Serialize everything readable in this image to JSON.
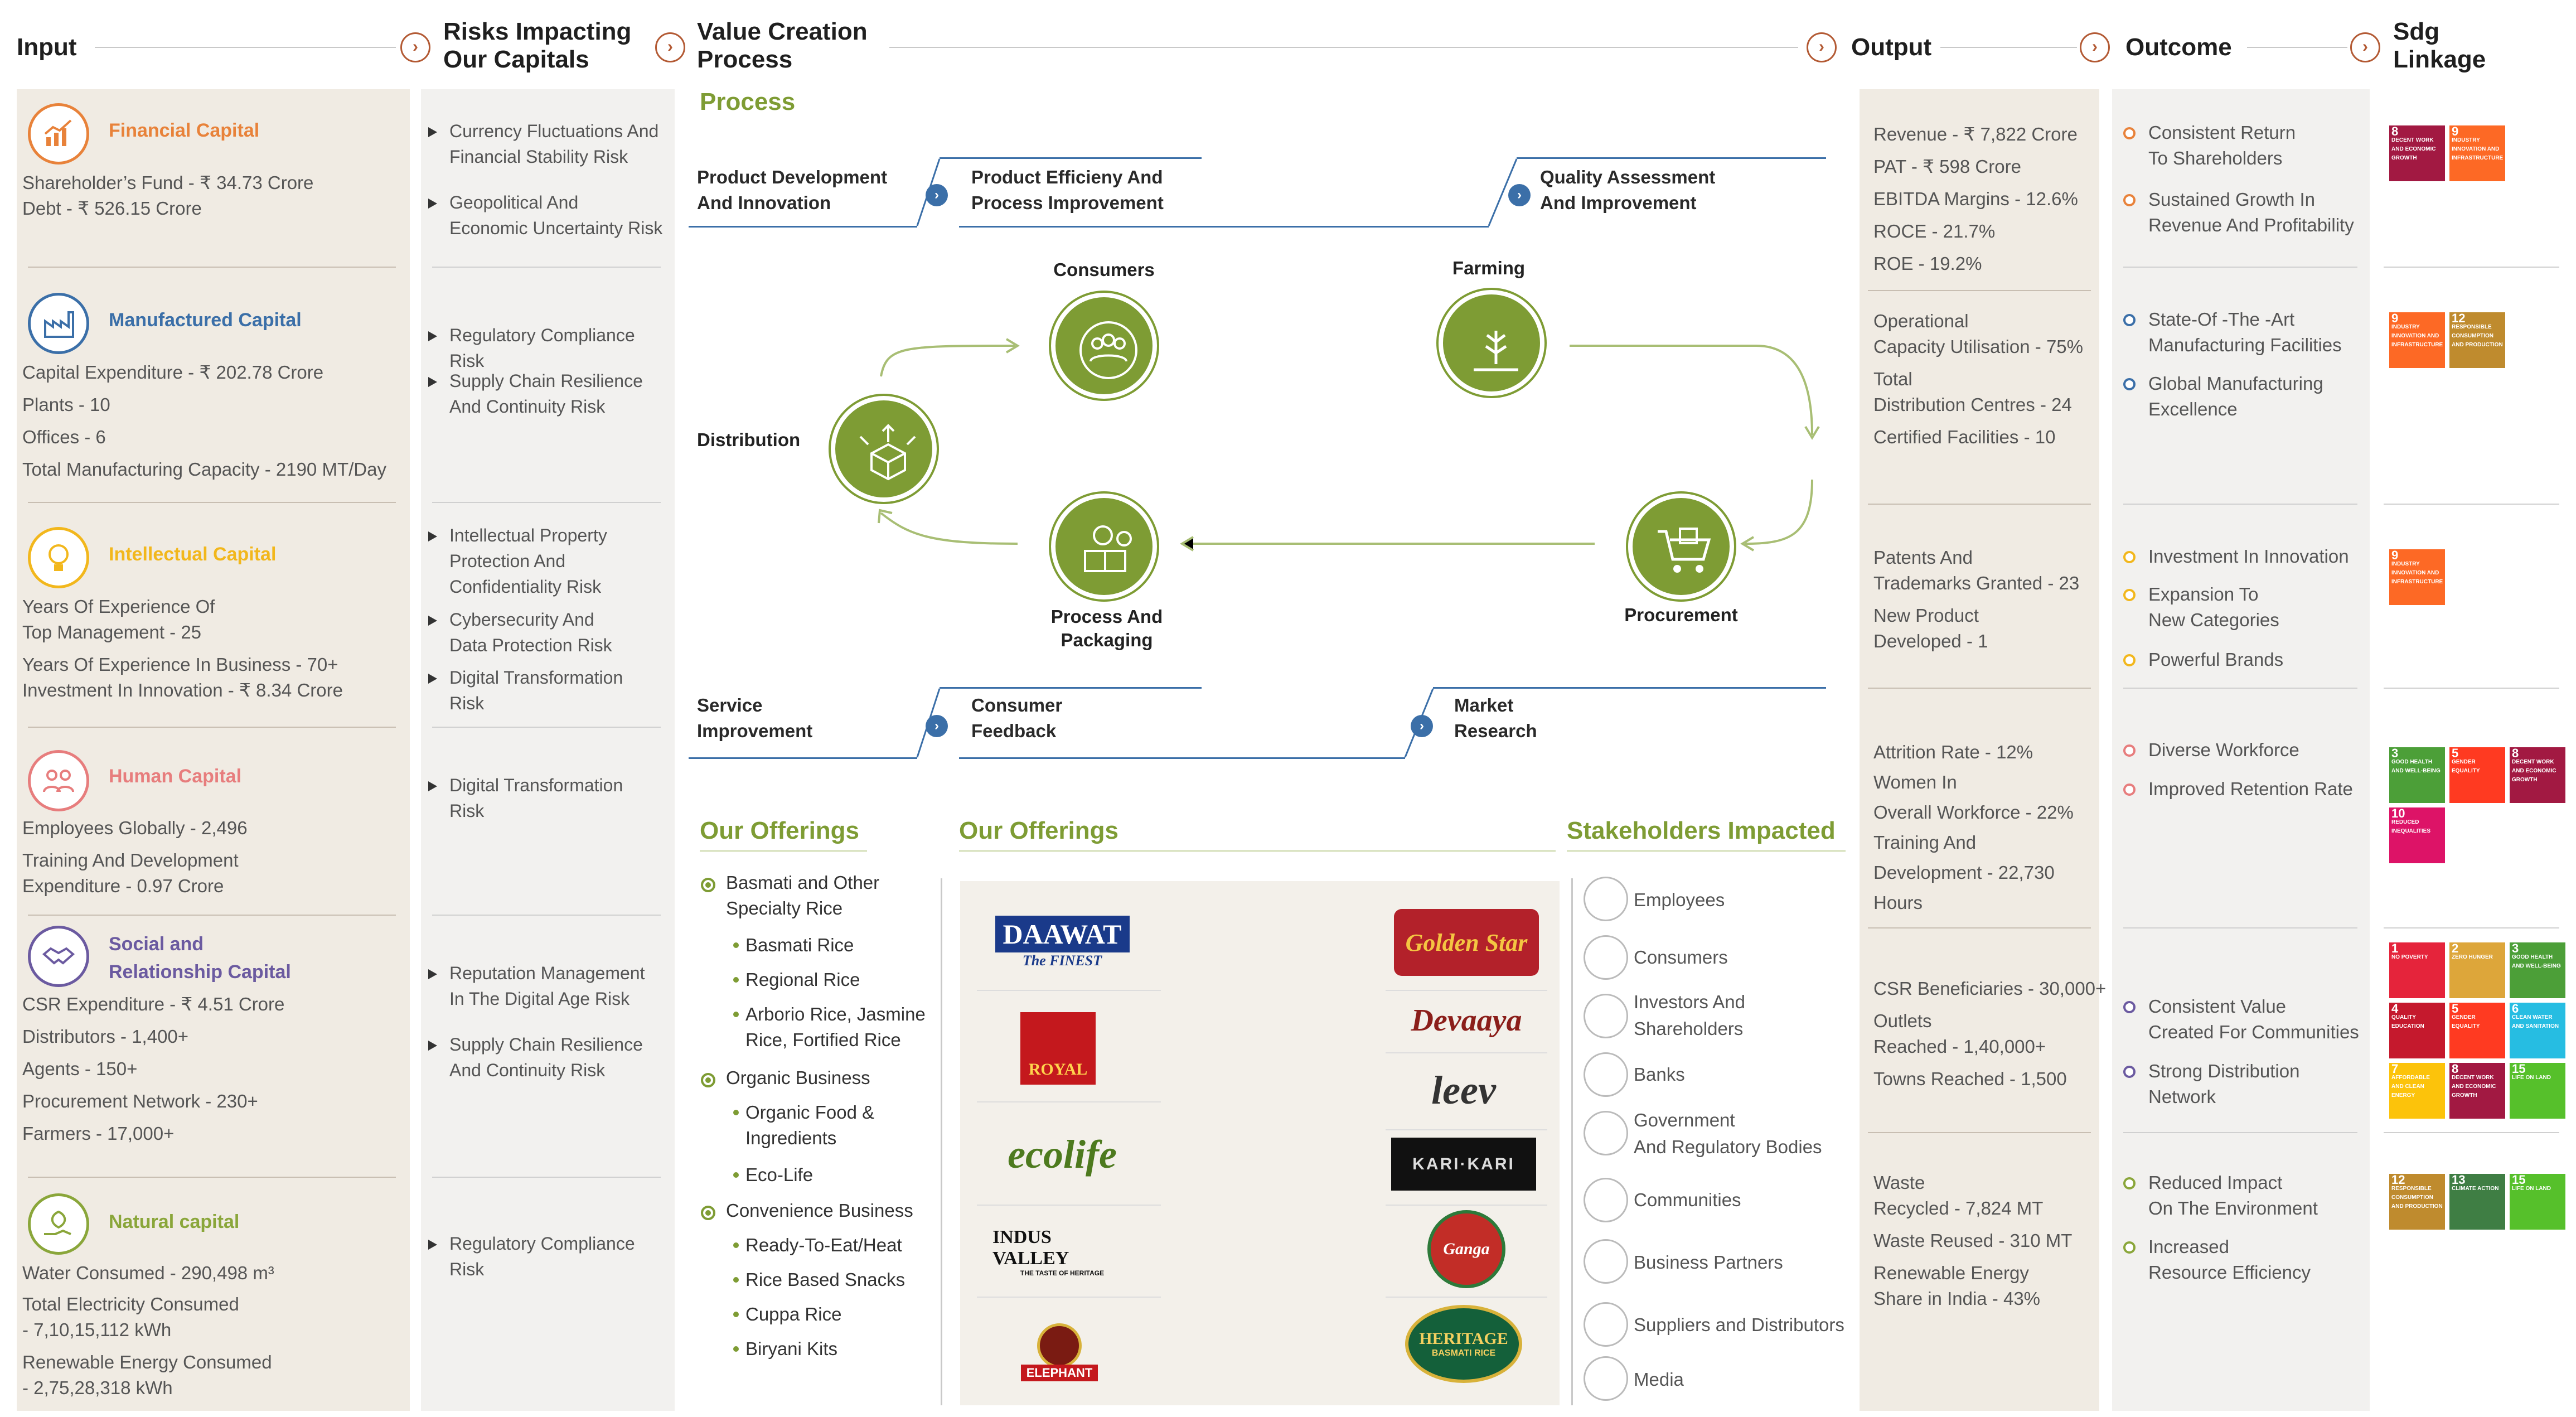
{
  "headers": {
    "input": "Input",
    "risks_l1": "Risks Impacting",
    "risks_l2": "Our Capitals",
    "value_l1": "Value Creation",
    "value_l2": "Process",
    "output": "Output",
    "outcome": "Outcome",
    "sdg_l1": "Sdg",
    "sdg_l2": "Linkage",
    "arrow": "›"
  },
  "capitals": [
    {
      "name": "Financial Capital",
      "color": "#e8823a",
      "lines": [
        "Shareholder’s Fund - ₹ 34.73 Crore",
        "Debt - ₹ 526.15 Crore"
      ]
    },
    {
      "name": "Manufactured Capital",
      "color": "#3b6fa8",
      "lines": [
        "Capital Expenditure - ₹ 202.78 Crore",
        "Plants - 10",
        "Offices - 6",
        "Total Manufacturing Capacity - 2190 MT/Day"
      ]
    },
    {
      "name": "Intellectual Capital",
      "color": "#f2b71c",
      "lines": [
        "Years Of Experience Of",
        "Top Management - 25",
        "Years Of Experience In Business - 70+",
        "Investment In Innovation - ₹ 8.34 Crore"
      ]
    },
    {
      "name": "Human Capital",
      "color": "#e77d7d",
      "lines": [
        "Employees Globally - 2,496",
        "Training And Development",
        "Expenditure - 0.97 Crore"
      ]
    },
    {
      "name_l1": "Social and",
      "name_l2": "Relationship Capital",
      "color": "#6b5aa0",
      "lines": [
        "CSR Expenditure - ₹ 4.51 Crore",
        "Distributors - 1,400+",
        "Agents - 150+",
        "Procurement Network - 230+",
        "Farmers - 17,000+"
      ]
    },
    {
      "name": "Natural capital",
      "color": "#8aa63a",
      "lines": [
        "Water Consumed - 290,498 m³",
        "Total Electricity Consumed",
        "-  7,10,15,112 kWh",
        "Renewable Energy Consumed",
        "- 2,75,28,318  kWh"
      ]
    }
  ],
  "risks": [
    [
      "Currency Fluctuations And",
      "Financial Stability Risk"
    ],
    [
      "Geopolitical And",
      "Economic Uncertainty Risk"
    ],
    [
      "Regulatory Compliance Risk"
    ],
    [
      "Supply Chain Resilience",
      "And Continuity Risk"
    ],
    [
      "Intellectual Property",
      "Protection And",
      "Confidentiality Risk"
    ],
    [
      "Cybersecurity And",
      "Data Protection Risk"
    ],
    [
      "Digital Transformation",
      "Risk"
    ],
    [
      "Digital Transformation",
      "Risk"
    ],
    [
      "Reputation Management",
      "In The Digital Age Risk"
    ],
    [
      "Supply Chain Resilience",
      "And Continuity Risk"
    ],
    [
      "Regulatory Compliance",
      "Risk"
    ]
  ],
  "process": {
    "title": "Process",
    "top_steps": [
      [
        "Product Development",
        "And Innovation"
      ],
      [
        "Product Efficieny And",
        "Process Improvement"
      ],
      [
        "Quality Assessment",
        "And Improvement"
      ]
    ],
    "bottom_steps": [
      [
        "Service",
        "Improvement"
      ],
      [
        "Consumer",
        "Feedback"
      ],
      [
        "Market",
        "Research"
      ]
    ],
    "cycle": {
      "consumers": "Consumers",
      "farming": "Farming",
      "distribution": "Distribution",
      "procurement": "Procurement",
      "packaging_l1": "Process And",
      "packaging_l2": "Packaging"
    }
  },
  "offerings": {
    "title1": "Our Offerings",
    "title2": "Our Offerings",
    "items": [
      {
        "level": 1,
        "lines": [
          "Basmati and Other",
          "Specialty Rice"
        ]
      },
      {
        "level": 2,
        "lines": [
          "Basmati Rice"
        ]
      },
      {
        "level": 2,
        "lines": [
          "Regional Rice"
        ]
      },
      {
        "level": 2,
        "lines": [
          "Arborio Rice, Jasmine",
          "Rice, Fortified Rice"
        ]
      },
      {
        "level": 1,
        "lines": [
          "Organic Business"
        ]
      },
      {
        "level": 2,
        "lines": [
          "Organic Food &",
          "Ingredients"
        ]
      },
      {
        "level": 2,
        "lines": [
          "Eco-Life"
        ]
      },
      {
        "level": 1,
        "lines": [
          "Convenience Business"
        ]
      },
      {
        "level": 2,
        "lines": [
          "Ready-To-Eat/Heat"
        ]
      },
      {
        "level": 2,
        "lines": [
          "Rice Based Snacks"
        ]
      },
      {
        "level": 2,
        "lines": [
          "Cuppa Rice"
        ]
      },
      {
        "level": 2,
        "lines": [
          "Biryani Kits"
        ]
      }
    ],
    "brands_left": [
      "DAAWAT",
      "The FINEST",
      "ROYAL",
      "ecolife",
      "INDUS VALLEY",
      "THE TASTE OF HERITAGE",
      "ELEPHANT"
    ],
    "brands_right": [
      "Golden Star",
      "Devaaya",
      "leev",
      "KARI·KARI",
      "Ganga",
      "HERITAGE",
      "BASMATI RICE"
    ]
  },
  "stakeholders": {
    "title": "Stakeholders Impacted",
    "items": [
      [
        "Employees"
      ],
      [
        "Consumers"
      ],
      [
        "Investors And",
        "Shareholders"
      ],
      [
        "Banks"
      ],
      [
        "Government",
        "And Regulatory Bodies"
      ],
      [
        "Communities"
      ],
      [
        "Business Partners"
      ],
      [
        "Suppliers and Distributors"
      ],
      [
        "Media"
      ]
    ]
  },
  "outputs": [
    [
      "Revenue - ₹ 7,822 Crore",
      "PAT - ₹ 598 Crore",
      "EBITDA Margins - 12.6%",
      "ROCE - 21.7%",
      "ROE - 19.2%"
    ],
    [
      "Operational",
      "Capacity Utilisation - 75%",
      "Total",
      "Distribution Centres - 24",
      "Certified Facilities - 10"
    ],
    [
      "Patents And",
      "Trademarks Granted - 23",
      "New Product",
      "Developed - 1"
    ],
    [
      "Attrition Rate - 12%",
      "Women In",
      "Overall Workforce - 22%",
      "Training And",
      "Development - 22,730",
      "Hours"
    ],
    [
      "CSR Beneficiaries - 30,000+",
      "Outlets",
      "Reached - 1,40,000+",
      "Towns Reached - 1,500"
    ],
    [
      "Waste",
      "Recycled - 7,824 MT",
      "Waste Reused - 310 MT",
      "Renewable Energy",
      "Share in India - 43%"
    ]
  ],
  "outcomes": [
    {
      "color": "#e8823a",
      "items": [
        [
          "Consistent Return",
          "To Shareholders"
        ],
        [
          "Sustained Growth In",
          "Revenue And Profitability"
        ]
      ]
    },
    {
      "color": "#3b6fa8",
      "items": [
        [
          "State-Of -The -Art",
          "Manufacturing Facilities"
        ],
        [
          "Global Manufacturing",
          "Excellence"
        ]
      ]
    },
    {
      "color": "#f2b71c",
      "items": [
        [
          "Investment In Innovation"
        ],
        [
          "Expansion To",
          "New Categories"
        ],
        [
          "Powerful Brands"
        ]
      ]
    },
    {
      "color": "#e77d7d",
      "items": [
        [
          "Diverse Workforce"
        ],
        [
          "Improved Retention Rate"
        ]
      ]
    },
    {
      "color": "#6b5aa0",
      "items": [
        [
          "Consistent Value",
          "Created For Communities"
        ],
        [
          "Strong Distribution",
          "Network"
        ]
      ]
    },
    {
      "color": "#8aa63a",
      "items": [
        [
          "Reduced Impact",
          "On The Environment"
        ],
        [
          "Increased",
          "Resource Efficiency"
        ]
      ]
    }
  ],
  "sdgs": [
    [
      {
        "n": "8",
        "t": "DECENT WORK AND ECONOMIC GROWTH",
        "c": "#a21942"
      },
      {
        "n": "9",
        "t": "INDUSTRY INNOVATION AND INFRASTRUCTURE",
        "c": "#fd6925"
      }
    ],
    [
      {
        "n": "9",
        "t": "INDUSTRY INNOVATION AND INFRASTRUCTURE",
        "c": "#fd6925"
      },
      {
        "n": "12",
        "t": "RESPONSIBLE CONSUMPTION AND PRODUCTION",
        "c": "#bf8b2e"
      }
    ],
    [
      {
        "n": "9",
        "t": "INDUSTRY INNOVATION AND INFRASTRUCTURE",
        "c": "#fd6925"
      }
    ],
    [
      {
        "n": "3",
        "t": "GOOD HEALTH AND WELL-BEING",
        "c": "#4c9f38"
      },
      {
        "n": "5",
        "t": "GENDER EQUALITY",
        "c": "#ff3a21"
      },
      {
        "n": "8",
        "t": "DECENT WORK AND ECONOMIC GROWTH",
        "c": "#a21942"
      },
      {
        "n": "10",
        "t": "REDUCED INEQUALITIES",
        "c": "#dd1367"
      }
    ],
    [
      {
        "n": "1",
        "t": "NO POVERTY",
        "c": "#e5243b"
      },
      {
        "n": "2",
        "t": "ZERO HUNGER",
        "c": "#dda63a"
      },
      {
        "n": "3",
        "t": "GOOD HEALTH AND WELL-BEING",
        "c": "#4c9f38"
      },
      {
        "n": "4",
        "t": "QUALITY EDUCATION",
        "c": "#c5192d"
      },
      {
        "n": "5",
        "t": "GENDER EQUALITY",
        "c": "#ff3a21"
      },
      {
        "n": "6",
        "t": "CLEAN WATER AND SANITATION",
        "c": "#26bde2"
      },
      {
        "n": "7",
        "t": "AFFORDABLE AND CLEAN ENERGY",
        "c": "#fcc30b"
      },
      {
        "n": "8",
        "t": "DECENT WORK AND ECONOMIC GROWTH",
        "c": "#a21942"
      },
      {
        "n": "15",
        "t": "LIFE ON LAND",
        "c": "#56c02b"
      }
    ],
    [
      {
        "n": "12",
        "t": "RESPONSIBLE CONSUMPTION AND PRODUCTION",
        "c": "#bf8b2e"
      },
      {
        "n": "13",
        "t": "CLIMATE ACTION",
        "c": "#3f7e44"
      },
      {
        "n": "15",
        "t": "LIFE ON LAND",
        "c": "#56c02b"
      }
    ]
  ]
}
